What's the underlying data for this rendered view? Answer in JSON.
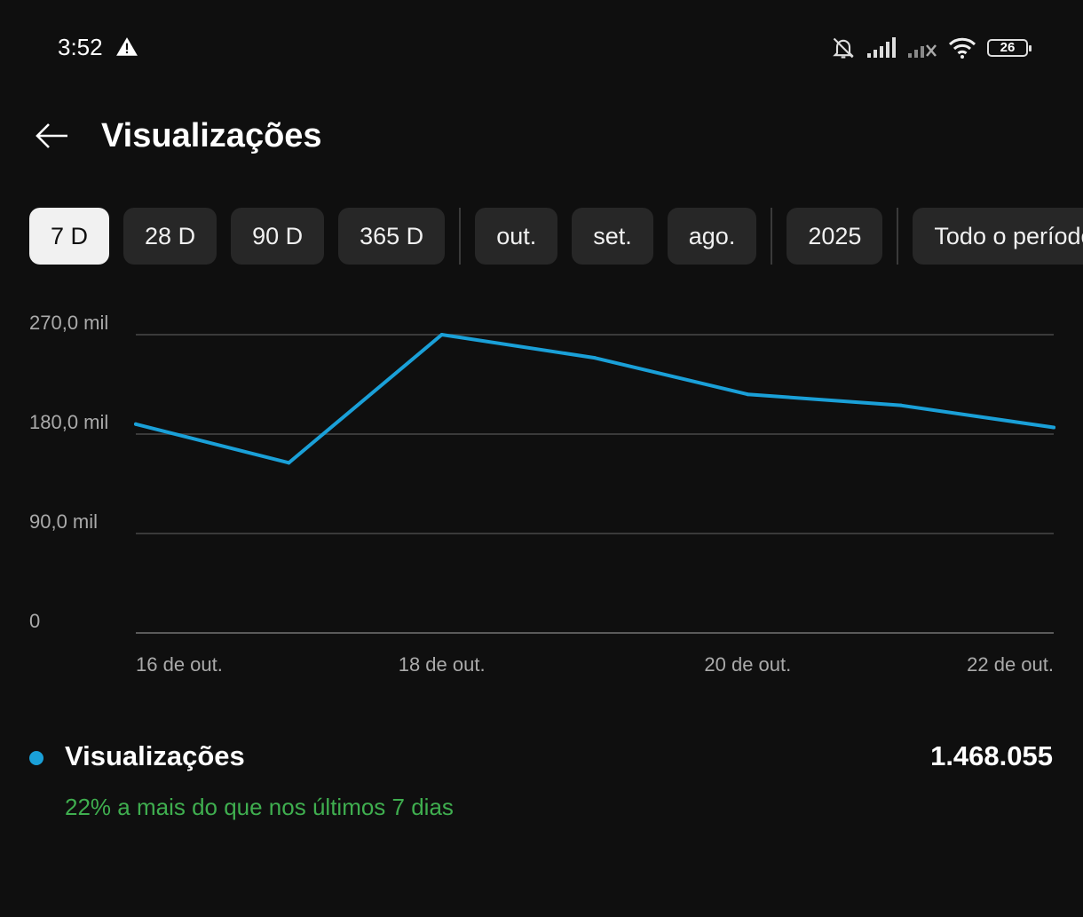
{
  "status": {
    "time": "3:52",
    "battery": "26",
    "icons": [
      "warning-icon",
      "bell-off-icon",
      "signal-icon",
      "signal-no-service-icon",
      "wifi-icon",
      "battery-icon"
    ]
  },
  "header": {
    "title": "Visualizações",
    "back_icon": "arrow-left-icon"
  },
  "filters": [
    {
      "label": "7 D",
      "selected": true
    },
    {
      "label": "28 D"
    },
    {
      "label": "90 D"
    },
    {
      "label": "365 D"
    },
    {
      "label": "out."
    },
    {
      "label": "set."
    },
    {
      "label": "ago."
    },
    {
      "label": "2025"
    },
    {
      "label": "Todo o período"
    }
  ],
  "chart_data": {
    "type": "line",
    "y_tick_labels": [
      "0",
      "90,0 mil",
      "180,0 mil",
      "270,0 mil"
    ],
    "y_ticks": [
      0,
      90000,
      180000,
      270000
    ],
    "ylim": [
      0,
      270000
    ],
    "x_tick_labels": [
      "16 de out.",
      "18 de out.",
      "20 de out.",
      "22 de out."
    ],
    "x_tick_index": [
      0,
      2,
      4,
      6
    ],
    "series": [
      {
        "color": "#1aa0d8",
        "values": [
          189000,
          154000,
          270000,
          249000,
          216000,
          206000,
          186000
        ]
      }
    ],
    "grid": true
  },
  "legend": {
    "label": "Visualizações",
    "total": "1.468.055",
    "comparison": "22% a mais do que nos últimos 7 dias",
    "dot_color": "#1aa0d8",
    "comparison_color": "#3fae4f"
  }
}
